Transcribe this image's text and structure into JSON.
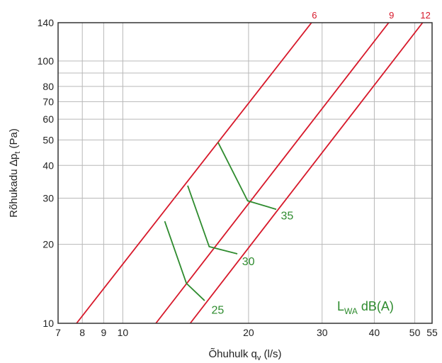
{
  "chart_data": {
    "type": "line",
    "xscale": "log",
    "yscale": "log",
    "xlim": [
      7,
      55
    ],
    "ylim": [
      10,
      140
    ],
    "xticks": [
      {
        "v": 7,
        "label": "7"
      },
      {
        "v": 8,
        "label": "8"
      },
      {
        "v": 9,
        "label": "9"
      },
      {
        "v": 10,
        "label": "10"
      },
      {
        "v": 20,
        "label": "20"
      },
      {
        "v": 30,
        "label": "30"
      },
      {
        "v": 40,
        "label": "40"
      },
      {
        "v": 50,
        "label": "50"
      },
      {
        "v": 55,
        "label": "55"
      }
    ],
    "yticks": [
      {
        "v": 10,
        "label": "10"
      },
      {
        "v": 20,
        "label": "20"
      },
      {
        "v": 30,
        "label": "30"
      },
      {
        "v": 40,
        "label": "40"
      },
      {
        "v": 50,
        "label": "50"
      },
      {
        "v": 60,
        "label": "60"
      },
      {
        "v": 70,
        "label": "70"
      },
      {
        "v": 80,
        "label": "80"
      },
      {
        "v": 90,
        "label": ""
      },
      {
        "v": 100,
        "label": "100"
      },
      {
        "v": 140,
        "label": "140"
      }
    ],
    "xlabel": {
      "main": "Õhuhulk q",
      "sub": "v",
      "unit": " (l/s)"
    },
    "ylabel": {
      "main": "Rõhukadu ∆p",
      "sub": "t",
      "unit": " (Pa)"
    },
    "legend": {
      "main": "L",
      "sub": "WA",
      "unit": " dB(A)"
    },
    "grid": true,
    "series": [
      {
        "name": "6",
        "color": "#d7182a",
        "points": [
          [
            7.75,
            10
          ],
          [
            28.3,
            140
          ]
        ]
      },
      {
        "name": "9",
        "color": "#d7182a",
        "points": [
          [
            12.0,
            10
          ],
          [
            43.3,
            140
          ]
        ]
      },
      {
        "name": "12",
        "color": "#d7182a",
        "points": [
          [
            14.5,
            10
          ],
          [
            52.2,
            140
          ]
        ]
      }
    ],
    "sound_lines": [
      {
        "label": "25",
        "color": "#2e8b2e",
        "points": [
          [
            12.6,
            24.5
          ],
          [
            14.2,
            14.2
          ],
          [
            15.7,
            12.2
          ]
        ],
        "label_at": [
          16.3,
          11.3
        ]
      },
      {
        "label": "30",
        "color": "#2e8b2e",
        "points": [
          [
            14.3,
            33.5
          ],
          [
            16.1,
            19.6
          ],
          [
            18.8,
            18.4
          ]
        ],
        "label_at": [
          19.3,
          17.3
        ]
      },
      {
        "label": "35",
        "color": "#2e8b2e",
        "points": [
          [
            16.9,
            49.0
          ],
          [
            19.9,
            29.3
          ],
          [
            23.3,
            27.2
          ]
        ],
        "label_at": [
          23.9,
          25.8
        ]
      }
    ]
  }
}
